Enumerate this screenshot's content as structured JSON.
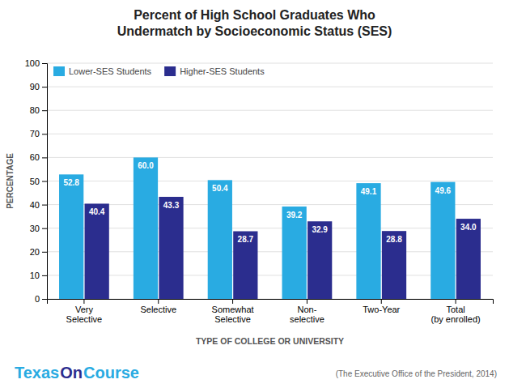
{
  "chart_data": {
    "type": "bar",
    "title": "Percent of High School Graduates Who\nUndermatch by Socioeconomic Status (SES)",
    "categories": [
      "Very\nSelective",
      "Selective",
      "Somewhat\nSelective",
      "Non-\nselective",
      "Two-Year",
      "Total\n(by enrolled)"
    ],
    "series": [
      {
        "name": "Lower-SES Students",
        "color": "#29ABE2",
        "values": [
          52.8,
          60.0,
          50.4,
          39.2,
          49.1,
          49.6
        ],
        "value_labels": [
          "52.8",
          "60.0",
          "50.4",
          "39.2",
          "49.1",
          "49.6"
        ]
      },
      {
        "name": "Higher-SES Students",
        "color": "#2B2D8E",
        "values": [
          40.4,
          43.3,
          28.7,
          32.9,
          28.8,
          34.0
        ],
        "value_labels": [
          "40.4",
          "43.3",
          "28.7",
          "32.9",
          "28.8",
          "34.0"
        ]
      }
    ],
    "ylabel": "PERCENTAGE",
    "xlabel": "TYPE OF COLLEGE OR UNIVERSITY",
    "ylim": [
      0,
      100
    ],
    "yticks": [
      0,
      10,
      20,
      30,
      40,
      50,
      60,
      70,
      80,
      90,
      100
    ],
    "grid": true,
    "legend": "upper left",
    "data_labels": true,
    "annotations": [
      {
        "text": "Texas",
        "color": "#29ABE2"
      },
      {
        "text": "On",
        "color": "#2B2D8E"
      },
      {
        "text": "Course",
        "color": "#29ABE2"
      },
      {
        "text": "(The Executive Office of the President, 2014)"
      }
    ]
  }
}
